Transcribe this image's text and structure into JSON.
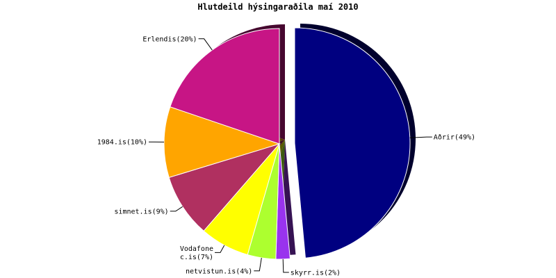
{
  "chart_data": {
    "type": "pie",
    "title": "Hlutdeild hýsingaraðila maí 2010",
    "categories": [
      "Aðrir",
      "skyrr.is",
      "netvistun.is",
      "Vodafone c.is",
      "simnet.is",
      "1984.is",
      "Erlendis"
    ],
    "values": [
      49,
      2,
      4,
      7,
      9,
      10,
      20
    ],
    "labels": [
      "Aðrir(49%)",
      "skyrr.is(2%)",
      "netvistun.is(4%)",
      "Vodafone\nc.is(7%)",
      "simnet.is(9%)",
      "1984.is(10%)",
      "Erlendis(20%)"
    ],
    "colors": [
      "#000080",
      "#9933ee",
      "#adff2f",
      "#ffff00",
      "#b03060",
      "#ffa500",
      "#c71585"
    ],
    "exploded": [
      "Aðrir"
    ],
    "shadow": true,
    "legend": "none"
  }
}
